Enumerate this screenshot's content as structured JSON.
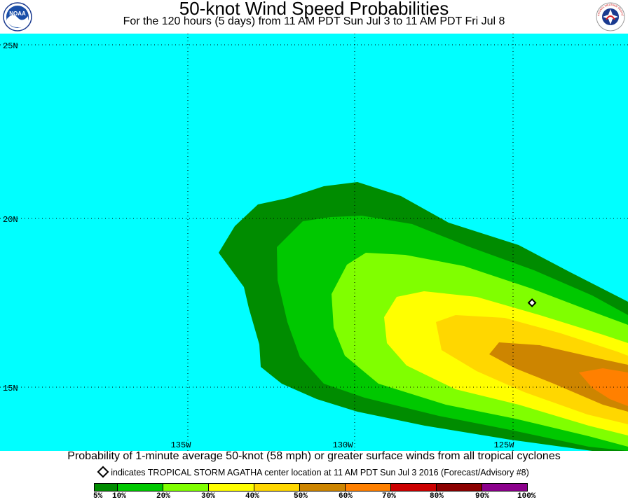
{
  "header": {
    "title": "50-knot Wind Speed Probabilities",
    "subtitle": "For the 120 hours (5 days) from 11 AM PDT Sun Jul 3 to 11 AM PDT Fri Jul 8",
    "left_logo": {
      "icon": "noaa-logo-icon",
      "text": "NOAA"
    },
    "right_logo": {
      "icon": "nws-logo-icon",
      "text": "NATIONAL WEATHER SERVICE"
    }
  },
  "map": {
    "ocean_color": "#00ffff",
    "latitude_labels": [
      "25N",
      "20N",
      "15N"
    ],
    "longitude_labels": [
      "135W",
      "130W",
      "125W"
    ],
    "storm_marker": {
      "icon": "storm-center-diamond-icon",
      "lon": -124.4,
      "lat": 17.5
    }
  },
  "footer": {
    "caption": "Probability of 1-minute average 50-knot (58 mph) or greater surface winds from all tropical cyclones",
    "marker_note": "indicates TROPICAL STORM AGATHA center location at 11 AM PDT Sun Jul 3 2016 (Forecast/Advisory #8)"
  },
  "colorbar": {
    "colors": [
      "#008c00",
      "#00c800",
      "#80ff00",
      "#ffff00",
      "#ffd700",
      "#cd8500",
      "#ff8000",
      "#cc0000",
      "#8b0000",
      "#8b008b"
    ],
    "labels": [
      "5%",
      "10%",
      "20%",
      "30%",
      "40%",
      "50%",
      "60%",
      "70%",
      "80%",
      "90%",
      "100%"
    ]
  }
}
